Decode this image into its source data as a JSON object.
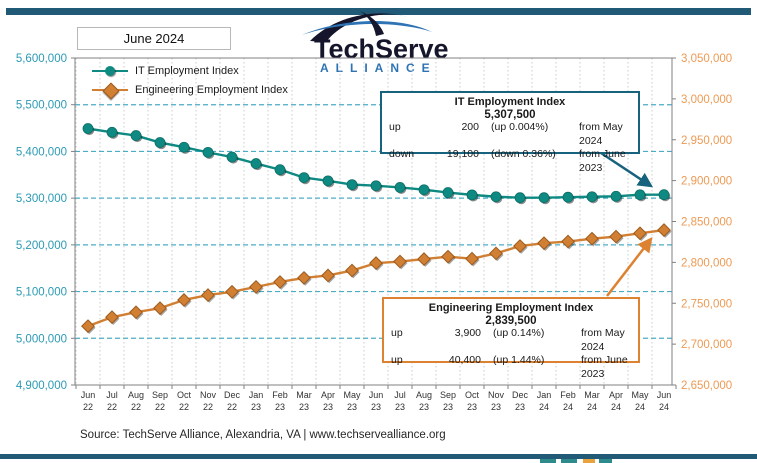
{
  "header": {
    "date_label": "June 2024",
    "logo": {
      "title": "TechServe",
      "subtitle": "ALLIANCE"
    }
  },
  "legend": {
    "items": [
      {
        "label": "IT Employment Index"
      },
      {
        "label": "Engineering Employment Index"
      }
    ]
  },
  "callouts": {
    "it": {
      "title": "IT Employment Index",
      "value": "5,307,500",
      "rows": [
        {
          "dir": "up",
          "amount": "200",
          "pct": "(up 0.004%)",
          "from": "from  May 2024"
        },
        {
          "dir": "down",
          "amount": "19,100",
          "pct": "(down 0.36%)",
          "from": "from June 2023"
        }
      ]
    },
    "eng": {
      "title": "Engineering Employment Index",
      "value": "2,839,500",
      "rows": [
        {
          "dir": "up",
          "amount": "3,900",
          "pct": "(up 0.14%)",
          "from": "from  May 2024"
        },
        {
          "dir": "up",
          "amount": "40,400",
          "pct": "(up 1.44%)",
          "from": "from  June 2023"
        }
      ]
    }
  },
  "source": {
    "text": "Source: TechServe Alliance, Alexandria, VA | www.techservealliance.org"
  },
  "colors": {
    "bar": "#205a77",
    "it_line": "#0e8a82",
    "it_label": "#2b9ab4",
    "eng_line": "#d07f33",
    "eng_stroke": "#9c5a1d",
    "eng_label": "#ed9a54",
    "h_grid": "#4bacc6",
    "v_grid": "#c9c9c9",
    "axis": "#808080",
    "it_box_border": "#17637e",
    "eng_box_border": "#dd8230"
  },
  "chart_data": {
    "type": "line",
    "title": "",
    "x_months": [
      "Jun",
      "Jul",
      "Aug",
      "Sep",
      "Oct",
      "Nov",
      "Dec",
      "Jan",
      "Feb",
      "Mar",
      "Apr",
      "May",
      "Jun",
      "Jul",
      "Aug",
      "Sep",
      "Oct",
      "Nov",
      "Dec",
      "Jan",
      "Feb",
      "Mar",
      "Apr",
      "May",
      "Jun"
    ],
    "x_years": [
      "22",
      "22",
      "22",
      "22",
      "22",
      "22",
      "22",
      "23",
      "23",
      "23",
      "23",
      "23",
      "23",
      "23",
      "23",
      "23",
      "23",
      "23",
      "23",
      "24",
      "24",
      "24",
      "24",
      "24",
      "24"
    ],
    "series": [
      {
        "name": "IT Employment Index",
        "axis": "left",
        "marker": "circle",
        "values": [
          5449000,
          5441000,
          5434000,
          5419000,
          5409000,
          5398000,
          5388000,
          5374000,
          5361000,
          5344000,
          5337000,
          5329000,
          5326600,
          5323000,
          5318000,
          5312000,
          5307000,
          5303000,
          5301000,
          5301000,
          5302000,
          5303000,
          5304000,
          5307300,
          5307500
        ]
      },
      {
        "name": "Engineering Employment Index",
        "axis": "right",
        "marker": "diamond",
        "values": [
          2722000,
          2733000,
          2739000,
          2744000,
          2754000,
          2760000,
          2764000,
          2770000,
          2776000,
          2781000,
          2784000,
          2790000,
          2799100,
          2801000,
          2804000,
          2807000,
          2804500,
          2811000,
          2820000,
          2823500,
          2825500,
          2829000,
          2831500,
          2835600,
          2839500
        ]
      }
    ],
    "left_axis": {
      "min": 4900000,
      "max": 5600000,
      "step": 100000
    },
    "right_axis": {
      "min": 2650000,
      "max": 3050000,
      "step": 50000
    },
    "grid": true,
    "legend_position": "top-left",
    "annotations": [
      "IT Employment Index 5,307,500: up 200 (up 0.004%) from May 2024; down 19,100 (down 0.36%) from June 2023",
      "Engineering Employment Index 2,839,500: up 3,900 (up 0.14%) from May 2024; up 40,400 (up 1.44%) from June 2023"
    ]
  }
}
